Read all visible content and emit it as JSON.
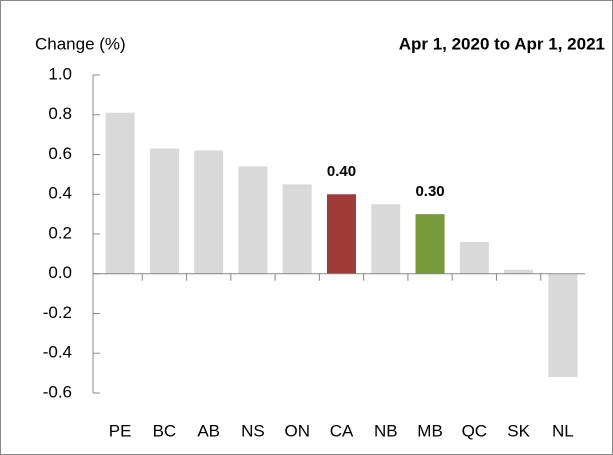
{
  "chart_data": {
    "type": "bar",
    "title": "Apr 1, 2020 to Apr 1, 2021",
    "y_label": "Change (%)",
    "categories": [
      "PE",
      "BC",
      "AB",
      "NS",
      "ON",
      "CA",
      "NB",
      "MB",
      "QC",
      "SK",
      "NL"
    ],
    "values": [
      0.81,
      0.63,
      0.62,
      0.54,
      0.45,
      0.4,
      0.35,
      0.3,
      0.16,
      0.02,
      -0.52
    ],
    "value_labels": [
      null,
      null,
      null,
      null,
      null,
      "0.40",
      null,
      "0.30",
      null,
      null,
      null
    ],
    "colors": [
      "#d9d9d9",
      "#d9d9d9",
      "#d9d9d9",
      "#d9d9d9",
      "#d9d9d9",
      "#9e3a38",
      "#d9d9d9",
      "#779a3b",
      "#d9d9d9",
      "#d9d9d9",
      "#d9d9d9"
    ],
    "ylim": [
      -0.6,
      1.0
    ],
    "yticks": [
      {
        "value": 1.0,
        "label": "1.0"
      },
      0.8,
      0.6,
      0.4,
      0.2,
      {
        "value": 0,
        "label": "0.0"
      },
      -0.2,
      -0.4,
      -0.6
    ],
    "grid": false
  }
}
